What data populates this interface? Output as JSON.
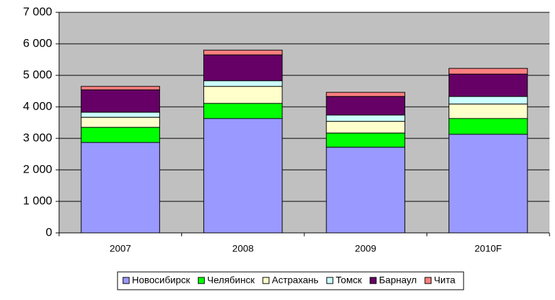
{
  "chart_data": {
    "type": "stacked-bar",
    "categories": [
      "2007",
      "2008",
      "2009",
      "2010F"
    ],
    "series": [
      {
        "name": "Новосибирск",
        "color": "#9999ff",
        "values": [
          2870,
          3630,
          2720,
          3130
        ]
      },
      {
        "name": "Челябинск",
        "color": "#00ff00",
        "values": [
          480,
          480,
          450,
          500
        ]
      },
      {
        "name": "Астрахань",
        "color": "#ffffcc",
        "values": [
          320,
          540,
          370,
          460
        ]
      },
      {
        "name": "Томск",
        "color": "#ccffff",
        "values": [
          160,
          180,
          200,
          240
        ]
      },
      {
        "name": "Барнаул",
        "color": "#660066",
        "values": [
          710,
          820,
          590,
          710
        ]
      },
      {
        "name": "Чита",
        "color": "#ff8080",
        "values": [
          110,
          150,
          130,
          180
        ]
      }
    ],
    "ylim": [
      0,
      7000
    ],
    "yticks": [
      0,
      {
        "value": 1000,
        "label": "1 000"
      },
      {
        "value": 2000,
        "label": "2 000"
      },
      {
        "value": 3000,
        "label": "3 000"
      },
      {
        "value": 4000,
        "label": "4 000"
      },
      {
        "value": 5000,
        "label": "5 000"
      },
      {
        "value": 6000,
        "label": "6 000"
      },
      {
        "value": 7000,
        "label": "7 000"
      }
    ],
    "grid": true,
    "legend": "bottom"
  }
}
